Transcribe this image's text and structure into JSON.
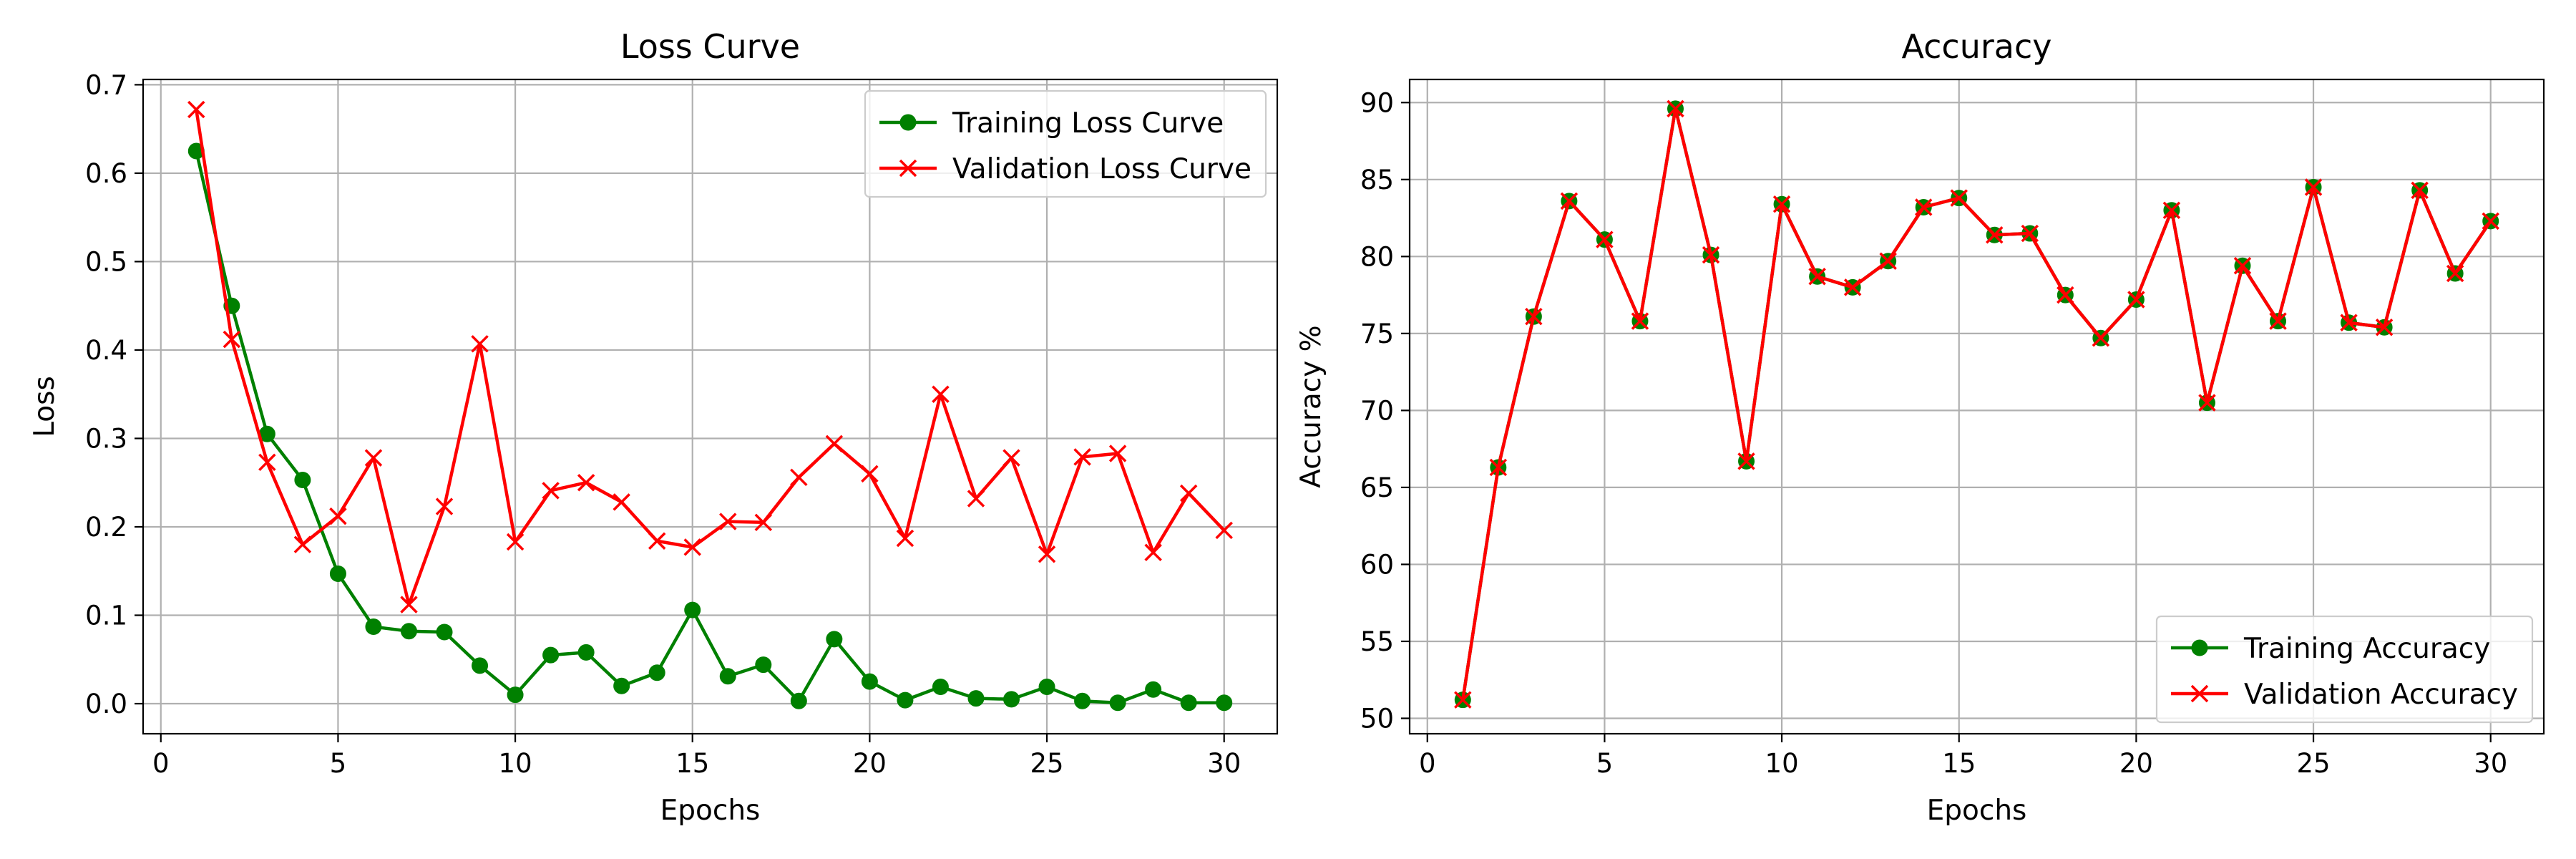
{
  "chart_data": [
    {
      "type": "line",
      "title": "Loss Curve",
      "xlabel": "Epochs",
      "ylabel": "Loss",
      "xlim": [
        -0.5,
        31.5
      ],
      "ylim": [
        -0.034,
        0.706
      ],
      "xticks": [
        0,
        5,
        10,
        15,
        20,
        25,
        30
      ],
      "yticks": [
        0.0,
        0.1,
        0.2,
        0.3,
        0.4,
        0.5,
        0.6,
        0.7
      ],
      "ytick_decimals": 1,
      "grid": true,
      "legend_position": "upper right",
      "x": [
        1,
        2,
        3,
        4,
        5,
        6,
        7,
        8,
        9,
        10,
        11,
        12,
        13,
        14,
        15,
        16,
        17,
        18,
        19,
        20,
        21,
        22,
        23,
        24,
        25,
        26,
        27,
        28,
        29,
        30
      ],
      "series": [
        {
          "name": "Training Loss Curve",
          "color": "#008000",
          "marker": "circle",
          "values": [
            0.625,
            0.45,
            0.305,
            0.253,
            0.147,
            0.087,
            0.082,
            0.081,
            0.043,
            0.01,
            0.055,
            0.058,
            0.02,
            0.035,
            0.106,
            0.031,
            0.044,
            0.003,
            0.073,
            0.025,
            0.004,
            0.019,
            0.006,
            0.005,
            0.019,
            0.003,
            0.001,
            0.016,
            0.001,
            0.001
          ]
        },
        {
          "name": "Validation Loss Curve",
          "color": "#ff0000",
          "marker": "x",
          "values": [
            0.672,
            0.412,
            0.273,
            0.18,
            0.212,
            0.278,
            0.112,
            0.223,
            0.407,
            0.183,
            0.241,
            0.25,
            0.228,
            0.184,
            0.177,
            0.206,
            0.205,
            0.256,
            0.294,
            0.26,
            0.187,
            0.35,
            0.232,
            0.278,
            0.169,
            0.279,
            0.283,
            0.171,
            0.238,
            0.196
          ]
        }
      ]
    },
    {
      "type": "line",
      "title": "Accuracy",
      "xlabel": "Epochs",
      "ylabel": "Accuracy %",
      "xlim": [
        -0.5,
        31.5
      ],
      "ylim": [
        49.0,
        91.5
      ],
      "xticks": [
        0,
        5,
        10,
        15,
        20,
        25,
        30
      ],
      "yticks": [
        50,
        55,
        60,
        65,
        70,
        75,
        80,
        85,
        90
      ],
      "ytick_decimals": 0,
      "grid": true,
      "legend_position": "lower right",
      "x": [
        1,
        2,
        3,
        4,
        5,
        6,
        7,
        8,
        9,
        10,
        11,
        12,
        13,
        14,
        15,
        16,
        17,
        18,
        19,
        20,
        21,
        22,
        23,
        24,
        25,
        26,
        27,
        28,
        29,
        30
      ],
      "series": [
        {
          "name": "Training Accuracy",
          "color": "#008000",
          "marker": "circle",
          "values": [
            51.2,
            66.3,
            76.1,
            83.6,
            81.1,
            75.8,
            89.6,
            80.1,
            66.7,
            83.4,
            78.7,
            78.0,
            79.7,
            83.2,
            83.8,
            81.4,
            81.5,
            77.5,
            74.7,
            77.2,
            83.0,
            70.5,
            79.4,
            75.8,
            84.5,
            75.7,
            75.4,
            84.3,
            78.9,
            82.3
          ]
        },
        {
          "name": "Validation Accuracy",
          "color": "#ff0000",
          "marker": "x",
          "values": [
            51.2,
            66.3,
            76.1,
            83.6,
            81.1,
            75.8,
            89.6,
            80.1,
            66.7,
            83.4,
            78.7,
            78.0,
            79.7,
            83.2,
            83.8,
            81.4,
            81.5,
            77.5,
            74.7,
            77.2,
            83.0,
            70.5,
            79.4,
            75.8,
            84.5,
            75.7,
            75.4,
            84.3,
            78.9,
            82.3
          ]
        }
      ]
    }
  ]
}
